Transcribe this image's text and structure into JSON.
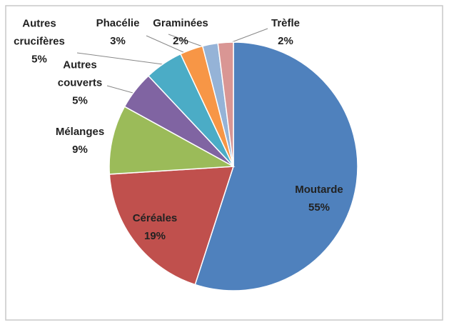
{
  "chart_data": {
    "type": "pie",
    "categories": [
      "Moutarde",
      "Céréales",
      "Mélanges",
      "Autres couverts",
      "Autres crucifères",
      "Phacélie",
      "Graminées",
      "Trèfle"
    ],
    "values": [
      55,
      19,
      9,
      5,
      5,
      3,
      2,
      2
    ],
    "value_labels": [
      "55%",
      "19%",
      "9%",
      "5%",
      "5%",
      "3%",
      "2%",
      "2%"
    ],
    "colors": [
      "#4f81bd",
      "#c0504d",
      "#9bbb59",
      "#8064a2",
      "#4bacc6",
      "#f79646",
      "#95b3d7",
      "#d99694"
    ],
    "start_angle": 0,
    "direction": "clockwise"
  }
}
